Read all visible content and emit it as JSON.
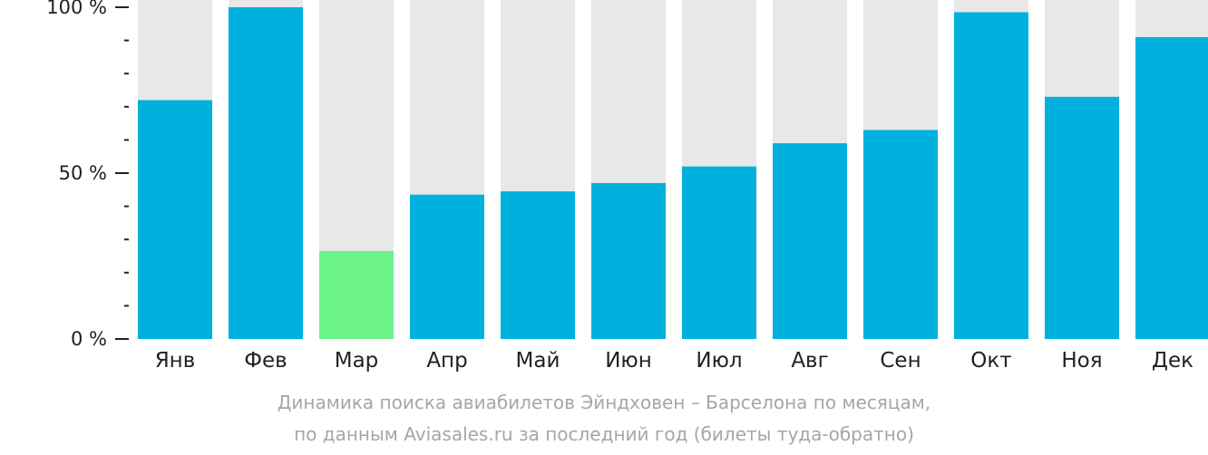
{
  "chart_data": {
    "type": "bar",
    "categories": [
      "Янв",
      "Фев",
      "Мар",
      "Апр",
      "Май",
      "Июн",
      "Июл",
      "Авг",
      "Сен",
      "Окт",
      "Ноя",
      "Дек"
    ],
    "values": [
      72,
      100,
      26.5,
      43.5,
      44.5,
      47,
      52,
      59,
      63,
      98.5,
      73,
      91
    ],
    "ylim": [
      0,
      100
    ],
    "yticks": [
      {
        "value": 0,
        "label": "0 %"
      },
      {
        "value": 50,
        "label": "50 %"
      },
      {
        "value": 100,
        "label": "100 %"
      }
    ],
    "minor_tick_step": 10,
    "grid": false,
    "legend": "none",
    "highlight_index": 2,
    "colors": {
      "bar": "#00b0dd",
      "highlight": "#6cf388",
      "background_bar": "#e8e8e8",
      "axis": "#222222"
    },
    "caption": [
      "Динамика поиска авиабилетов Эйндховен – Барселона по месяцам,",
      "по данным Aviasales.ru за последний год (билеты туда-обратно)"
    ]
  }
}
